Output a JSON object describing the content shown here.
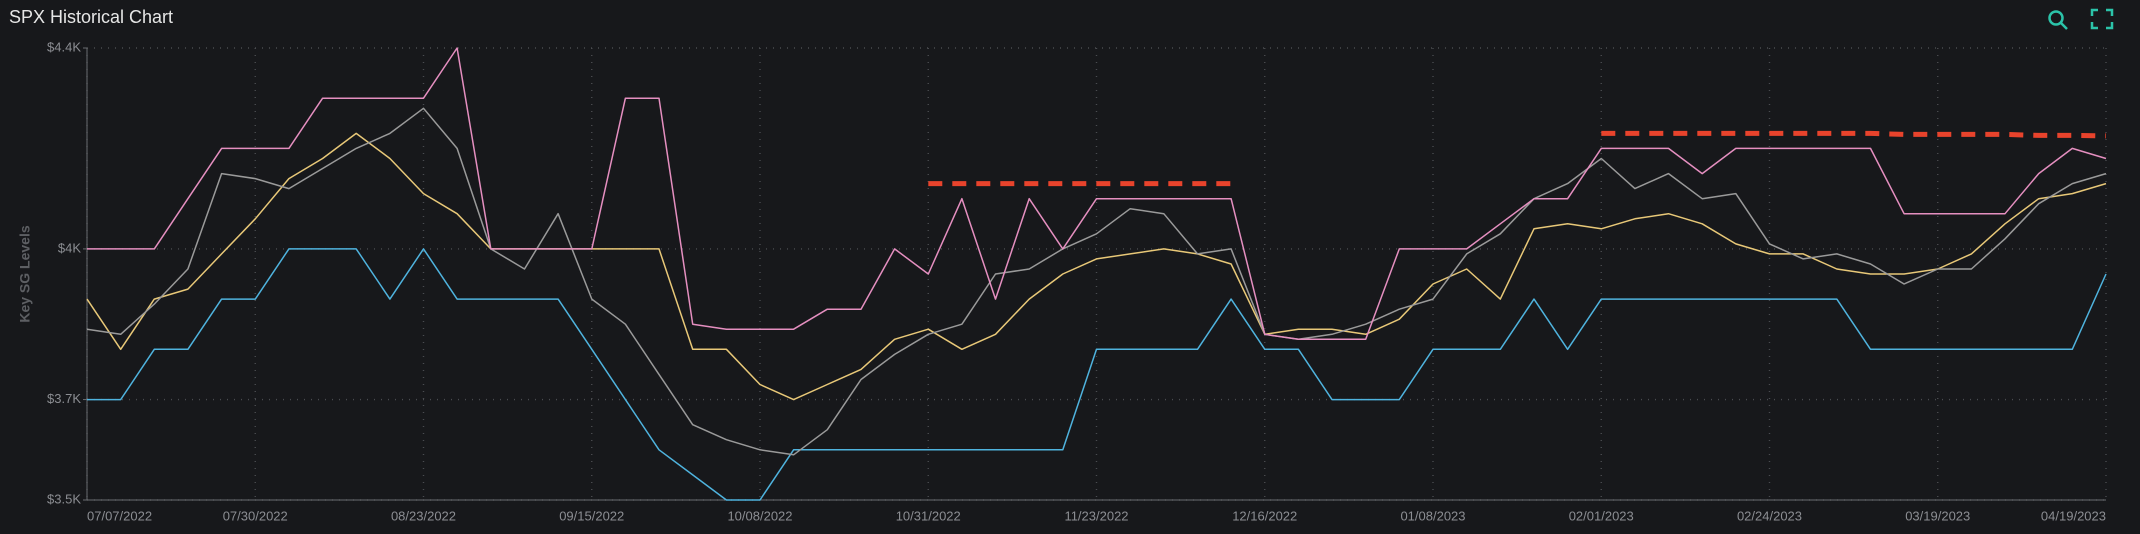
{
  "chart_data": {
    "type": "line",
    "title": "SPX Historical Chart",
    "ylabel": "Key SG Levels",
    "categories": [
      "07/07/2022",
      null,
      null,
      null,
      null,
      "07/30/2022",
      null,
      null,
      null,
      null,
      "08/23/2022",
      null,
      null,
      null,
      null,
      "09/15/2022",
      null,
      null,
      null,
      null,
      "10/08/2022",
      null,
      null,
      null,
      null,
      "10/31/2022",
      null,
      null,
      null,
      null,
      "11/23/2022",
      null,
      null,
      null,
      null,
      "12/16/2022",
      null,
      null,
      null,
      null,
      "01/08/2023",
      null,
      null,
      null,
      null,
      "02/01/2023",
      null,
      null,
      null,
      null,
      "02/24/2023",
      null,
      null,
      null,
      null,
      "03/19/2023",
      null,
      null,
      null,
      null,
      "04/19/2023"
    ],
    "ylim": [
      3500,
      4400
    ],
    "yticks": [
      {
        "value": 3500,
        "label": "$3.5K"
      },
      {
        "value": 3700,
        "label": "$3.7K"
      },
      {
        "value": 4000,
        "label": "$4K"
      },
      {
        "value": 4400,
        "label": "$4.4K"
      }
    ],
    "grid": true,
    "series": [
      {
        "color": "#4fb3de",
        "values": [
          3700,
          3700,
          3800,
          3800,
          3900,
          3900,
          4000,
          4000,
          4000,
          3900,
          4000,
          3900,
          3900,
          3900,
          3900,
          3800,
          3700,
          3600,
          3550,
          3500,
          3500,
          3600,
          3600,
          3600,
          3600,
          3600,
          3600,
          3600,
          3600,
          3600,
          3800,
          3800,
          3800,
          3800,
          3900,
          3800,
          3800,
          3700,
          3700,
          3700,
          3800,
          3800,
          3800,
          3900,
          3800,
          3900,
          3900,
          3900,
          3900,
          3900,
          3900,
          3900,
          3900,
          3800,
          3800,
          3800,
          3800,
          3800,
          3800,
          3800,
          3950
        ]
      },
      {
        "color": "#e8c878",
        "values": [
          3900,
          3800,
          3900,
          3920,
          3990,
          4060,
          4140,
          4180,
          4230,
          4180,
          4110,
          4070,
          4000,
          4000,
          4000,
          4000,
          4000,
          4000,
          3800,
          3800,
          3730,
          3700,
          3730,
          3760,
          3820,
          3840,
          3800,
          3830,
          3900,
          3950,
          3980,
          3990,
          4000,
          3990,
          3970,
          3830,
          3840,
          3840,
          3830,
          3860,
          3930,
          3960,
          3900,
          4040,
          4050,
          4040,
          4060,
          4070,
          4050,
          4010,
          3990,
          3990,
          3960,
          3950,
          3950,
          3960,
          3990,
          4050,
          4100,
          4110,
          4130
        ]
      },
      {
        "color": "#9a9a9a",
        "values": [
          3840,
          3830,
          3890,
          3960,
          4150,
          4140,
          4120,
          4160,
          4200,
          4230,
          4280,
          4200,
          4000,
          3960,
          4070,
          3900,
          3850,
          3750,
          3650,
          3620,
          3600,
          3590,
          3640,
          3740,
          3790,
          3830,
          3850,
          3950,
          3960,
          4000,
          4030,
          4080,
          4070,
          3990,
          4000,
          3830,
          3820,
          3830,
          3850,
          3880,
          3900,
          3990,
          4030,
          4100,
          4130,
          4180,
          4120,
          4150,
          4100,
          4110,
          4010,
          3980,
          3990,
          3970,
          3930,
          3960,
          3960,
          4020,
          4090,
          4130,
          4150
        ]
      },
      {
        "color": "#e58fc0",
        "values": [
          4000,
          4000,
          4000,
          4100,
          4200,
          4200,
          4200,
          4300,
          4300,
          4300,
          4300,
          4400,
          4000,
          4000,
          4000,
          4000,
          4300,
          4300,
          3850,
          3840,
          3840,
          3840,
          3880,
          3880,
          4000,
          3950,
          4100,
          3900,
          4100,
          4000,
          4100,
          4100,
          4100,
          4100,
          4100,
          3830,
          3820,
          3820,
          3820,
          4000,
          4000,
          4000,
          4050,
          4100,
          4100,
          4200,
          4200,
          4200,
          4150,
          4200,
          4200,
          4200,
          4200,
          4200,
          4070,
          4070,
          4070,
          4070,
          4150,
          4200,
          4180
        ]
      },
      {
        "color": "#e8432c",
        "dashed": true,
        "values": [
          null,
          null,
          null,
          null,
          null,
          null,
          null,
          null,
          null,
          null,
          null,
          null,
          null,
          null,
          null,
          null,
          null,
          null,
          null,
          null,
          null,
          null,
          null,
          null,
          null,
          4130,
          4130,
          4130,
          4130,
          4130,
          4130,
          4130,
          4130,
          4130,
          4130,
          null,
          null,
          null,
          null,
          null,
          null,
          null,
          null,
          null,
          null,
          4230,
          4230,
          4230,
          4230,
          4230,
          4230,
          4230,
          4230,
          4230,
          4228,
          4228,
          4228,
          4228,
          4226,
          4226,
          4225
        ]
      }
    ]
  }
}
